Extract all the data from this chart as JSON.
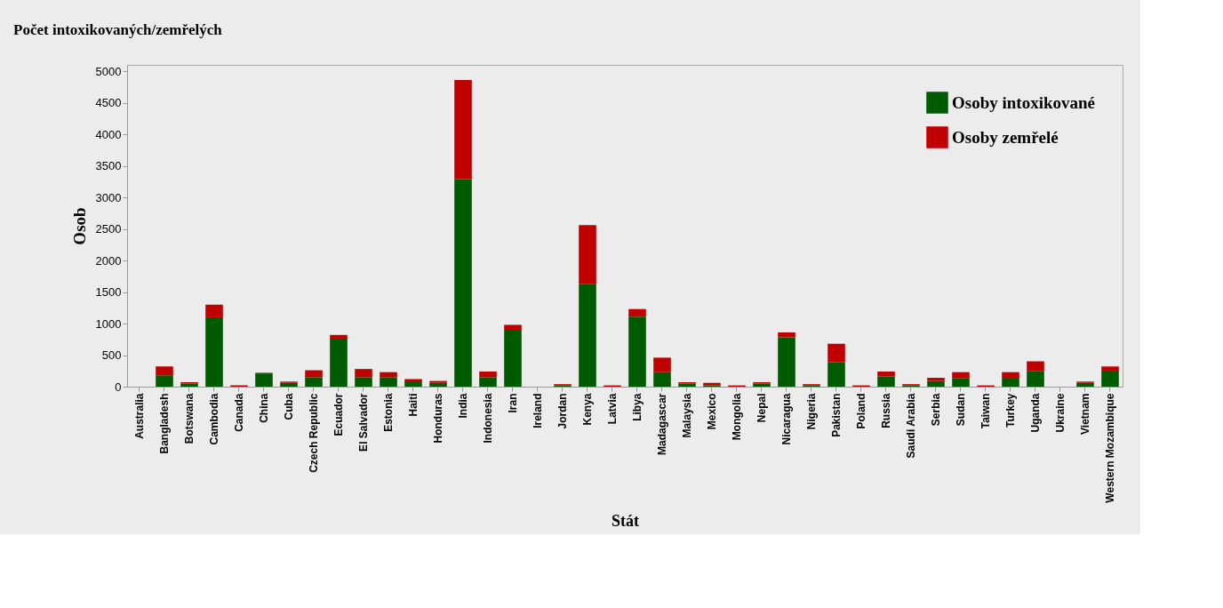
{
  "chart_data": {
    "type": "bar",
    "title": "Počet intoxikovaných/zemřelých",
    "xlabel": "Stát",
    "ylabel": "Osob",
    "categories": [
      "Australia",
      "Bangladesh",
      "Botswana",
      "Cambodia",
      "Canada",
      "China",
      "Cuba",
      "Czech Republic",
      "Ecuador",
      "El Salvador",
      "Estonia",
      "Haiti",
      "Honduras",
      "India",
      "Indonesia",
      "Iran",
      "Ireland",
      "Jordan",
      "Kenya",
      "Latvia",
      "Libya",
      "Madagascar",
      "Malaysia",
      "Mexico",
      "Mongolia",
      "Nepal",
      "Nicaragua",
      "Nigeria",
      "Pakistan",
      "Poland",
      "Russia",
      "Saudi Arabia",
      "Serbia",
      "Sudan",
      "Taiwan",
      "Turkey",
      "Uganda",
      "Ukraine",
      "Vietnam",
      "Western Mozambique"
    ],
    "stacked": true,
    "series": [
      {
        "name": "Osoby intoxikované",
        "color": "#005a00",
        "values": [
          0,
          180,
          50,
          1100,
          0,
          210,
          60,
          150,
          760,
          150,
          150,
          70,
          60,
          3290,
          150,
          900,
          0,
          20,
          1630,
          0,
          1110,
          230,
          50,
          20,
          0,
          50,
          780,
          20,
          390,
          0,
          160,
          20,
          90,
          130,
          0,
          140,
          250,
          0,
          60,
          240
        ]
      },
      {
        "name": "Osoby zemřelé",
        "color": "#c00000",
        "values": [
          0,
          140,
          20,
          200,
          20,
          10,
          20,
          110,
          60,
          130,
          80,
          50,
          30,
          1570,
          90,
          80,
          0,
          20,
          930,
          20,
          120,
          230,
          20,
          40,
          20,
          20,
          80,
          20,
          290,
          20,
          80,
          20,
          50,
          100,
          20,
          90,
          150,
          0,
          20,
          80
        ]
      }
    ],
    "ylim": [
      0,
      5100
    ],
    "yticks": [
      0,
      500,
      1000,
      1500,
      2000,
      2500,
      3000,
      3500,
      4000,
      4500,
      5000
    ],
    "grid": false,
    "legend": "top right"
  }
}
